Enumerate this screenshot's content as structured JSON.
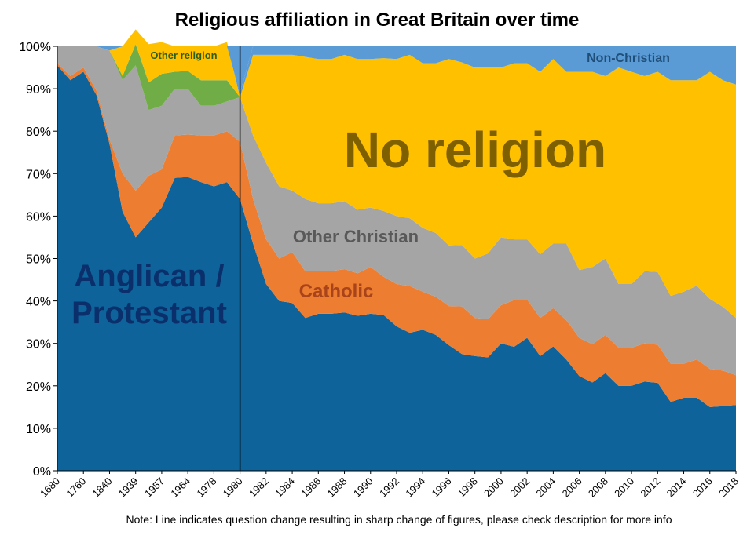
{
  "chart_data": {
    "type": "area",
    "stacked": true,
    "title": "Religious affiliation in Great Britain over time",
    "note": "Note: Line indicates question change resulting in sharp change of figures, please check description for more info",
    "xlabel": "",
    "ylabel": "",
    "ylim": [
      0,
      100
    ],
    "y_ticks": [
      "0%",
      "10%",
      "20%",
      "30%",
      "40%",
      "50%",
      "60%",
      "70%",
      "80%",
      "90%",
      "100%"
    ],
    "x_tick_labels": [
      "1680",
      "1760",
      "1840",
      "1939",
      "1957",
      "1964",
      "1978",
      "1980",
      "1982",
      "1984",
      "1986",
      "1988",
      "1990",
      "1992",
      "1994",
      "1996",
      "1998",
      "2000",
      "2002",
      "2004",
      "2006",
      "2008",
      "2010",
      "2012",
      "2014",
      "2016",
      "2018"
    ],
    "question_change_marker": "1980",
    "colors": {
      "anglican": "#0e639a",
      "catholic": "#ed7d31",
      "other_christian": "#a5a5a5",
      "other_religion": "#70ad47",
      "no_religion": "#ffc000",
      "non_christian": "#5b9bd5",
      "question_line": "#000000"
    },
    "series": [
      {
        "name": "Anglican / Protestant",
        "values": [
          95.5,
          92,
          94,
          88.5,
          77,
          61,
          55,
          58.5,
          62,
          69,
          69.2,
          68,
          67,
          68,
          64,
          53.5,
          44,
          40,
          39.5,
          36,
          37,
          37,
          37.3,
          36.5,
          37,
          36.7,
          34,
          32.5,
          33.2,
          32,
          29.6,
          27.5,
          27,
          26.7,
          30,
          29.2,
          31.3,
          27,
          29.3,
          26.2,
          22.3,
          20.8,
          23,
          20,
          20,
          21,
          20.7,
          16.2,
          17.2,
          17.2,
          15,
          15.2,
          15.5
        ]
      },
      {
        "name": "Catholic",
        "values": [
          0.5,
          1,
          1,
          1,
          1,
          9,
          11,
          11,
          9,
          10,
          10,
          11,
          12,
          12,
          13.5,
          10.5,
          10.5,
          10,
          12,
          11,
          10,
          10,
          10.2,
          10,
          11,
          9,
          10,
          11,
          9,
          9,
          9.2,
          11.2,
          9,
          9,
          9,
          11,
          9,
          9,
          9,
          9.3,
          9,
          9,
          9,
          9,
          9,
          9,
          9,
          9,
          8,
          9,
          9,
          8.4,
          7
        ]
      },
      {
        "name": "Other Christian",
        "values": [
          4,
          7,
          5,
          10.5,
          21,
          22,
          29.5,
          15.5,
          15,
          11,
          10.8,
          7,
          7,
          7,
          10.5,
          15,
          18,
          17,
          14.5,
          17,
          16,
          16,
          16,
          15,
          14,
          15.5,
          16,
          16,
          15,
          15,
          14.3,
          14.5,
          14,
          15.5,
          16,
          14.3,
          14.2,
          15,
          15.2,
          18,
          16,
          18.2,
          18,
          15,
          15,
          17,
          17.1,
          16,
          17,
          17.4,
          16.5,
          15,
          13.5
        ]
      },
      {
        "name": "Other religion",
        "values": [
          0,
          0,
          0,
          0,
          0,
          0,
          0,
          0,
          0,
          0,
          0,
          0,
          0,
          0,
          0,
          0,
          0,
          0,
          0,
          0,
          0,
          0,
          0,
          0,
          0,
          0,
          0,
          0,
          0,
          0,
          0,
          0,
          0,
          0,
          0,
          0,
          0,
          0,
          0,
          0,
          0,
          0,
          0,
          0,
          0,
          0,
          0,
          0,
          0,
          0,
          0,
          0,
          0
        ]
      },
      {
        "name": "No religion",
        "values": [
          0,
          0,
          0,
          0,
          0,
          7,
          3.5,
          9,
          7.5,
          6,
          5.8,
          8,
          8,
          9,
          0,
          19,
          25.5,
          31,
          32,
          33.5,
          34,
          34,
          34.5,
          35.5,
          35,
          36,
          37,
          38.5,
          38.8,
          40,
          43.9,
          43,
          45,
          43.8,
          40,
          41.5,
          41.5,
          43,
          43.5,
          40.5,
          46.7,
          46,
          43,
          51,
          50,
          46,
          47.2,
          50.8,
          49.8,
          48.4,
          53.5,
          53.4,
          55
        ]
      },
      {
        "name": "Non-Christian",
        "values": [
          0,
          0,
          0,
          0,
          0,
          0,
          0,
          0,
          0,
          0,
          0,
          0,
          0,
          0,
          1,
          2,
          2,
          2,
          2,
          2.5,
          3,
          3,
          2,
          3,
          3,
          2.8,
          3,
          2,
          4,
          4,
          3,
          3.8,
          5,
          5,
          5,
          4,
          4,
          6,
          3,
          6,
          6,
          6,
          7,
          5,
          6,
          7,
          6,
          8,
          8,
          8,
          6,
          8,
          9
        ]
      }
    ],
    "other_religion_band": {
      "description_label": "Other religion",
      "values": [
        0,
        0,
        0,
        0,
        0,
        1,
        5,
        6.5,
        7.5,
        4,
        4.2,
        6,
        6,
        5,
        0
      ]
    },
    "annotations": [
      {
        "text": "Anglican /",
        "series": "Anglican / Protestant",
        "color": "#0a2f6b"
      },
      {
        "text": "Protestant",
        "series": "Anglican / Protestant",
        "color": "#0a2f6b"
      },
      {
        "text": "Catholic",
        "series": "Catholic",
        "color": "#a8431a"
      },
      {
        "text": "Other Christian",
        "series": "Other Christian",
        "color": "#595959"
      },
      {
        "text": "Other religion",
        "series": "Other religion",
        "color": "#2e5f1a"
      },
      {
        "text": "No religion",
        "series": "No religion",
        "color": "#7f6000"
      },
      {
        "text": "Non-Christian",
        "series": "Non-Christian",
        "color": "#1f4e79"
      }
    ]
  }
}
